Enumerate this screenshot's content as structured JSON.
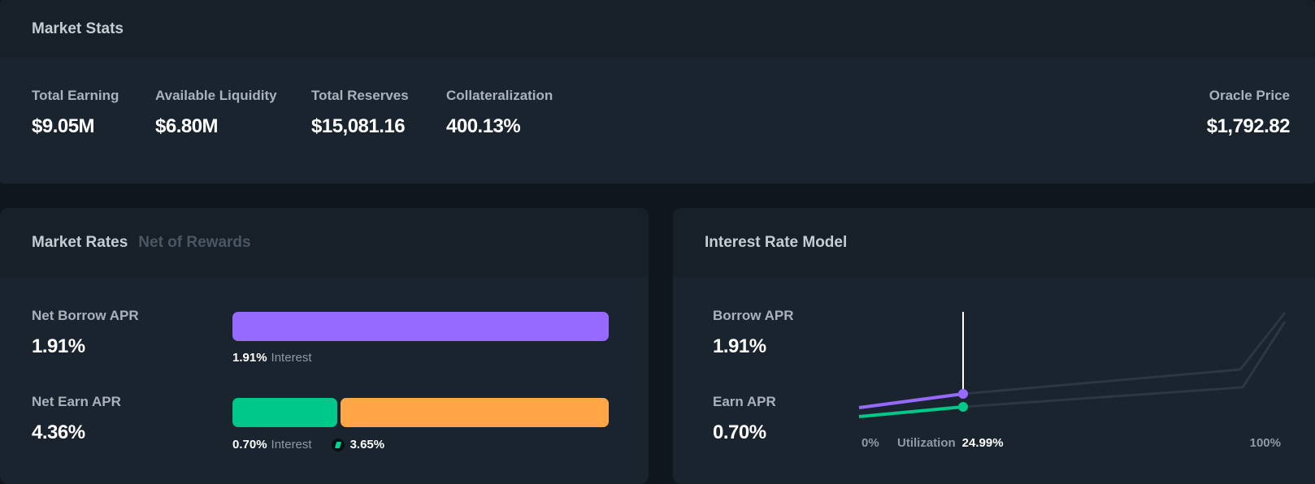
{
  "market_stats": {
    "title": "Market Stats",
    "total_earning": {
      "label": "Total Earning",
      "value": "$9.05M"
    },
    "available_liquidity": {
      "label": "Available Liquidity",
      "value": "$6.80M"
    },
    "total_reserves": {
      "label": "Total Reserves",
      "value": "$15,081.16"
    },
    "collateralization": {
      "label": "Collateralization",
      "value": "400.13%"
    },
    "oracle_price": {
      "label": "Oracle Price",
      "value": "$1,792.82"
    }
  },
  "market_rates": {
    "title": "Market Rates",
    "subtitle": "Net of Rewards",
    "net_borrow": {
      "label": "Net Borrow APR",
      "value": "1.91%",
      "interest_pct": "1.91%",
      "interest_label": "Interest"
    },
    "net_earn": {
      "label": "Net Earn APR",
      "value": "4.36%",
      "interest_pct": "0.70%",
      "interest_label": "Interest",
      "reward_pct": "3.65%",
      "reward_icon": "comp-token-icon"
    }
  },
  "interest_rate_model": {
    "title": "Interest Rate Model",
    "borrow": {
      "label": "Borrow APR",
      "value": "1.91%"
    },
    "earn": {
      "label": "Earn APR",
      "value": "0.70%"
    },
    "axis_min": "0%",
    "axis_max": "100%",
    "utilization_label": "Utilization",
    "utilization_value": "24.99%"
  },
  "colors": {
    "background": "#0f161d",
    "card": "#1a242e",
    "card_header": "#172029",
    "borrow": "#9669ff",
    "earn": "#00c888",
    "reward": "#ffa646"
  }
}
